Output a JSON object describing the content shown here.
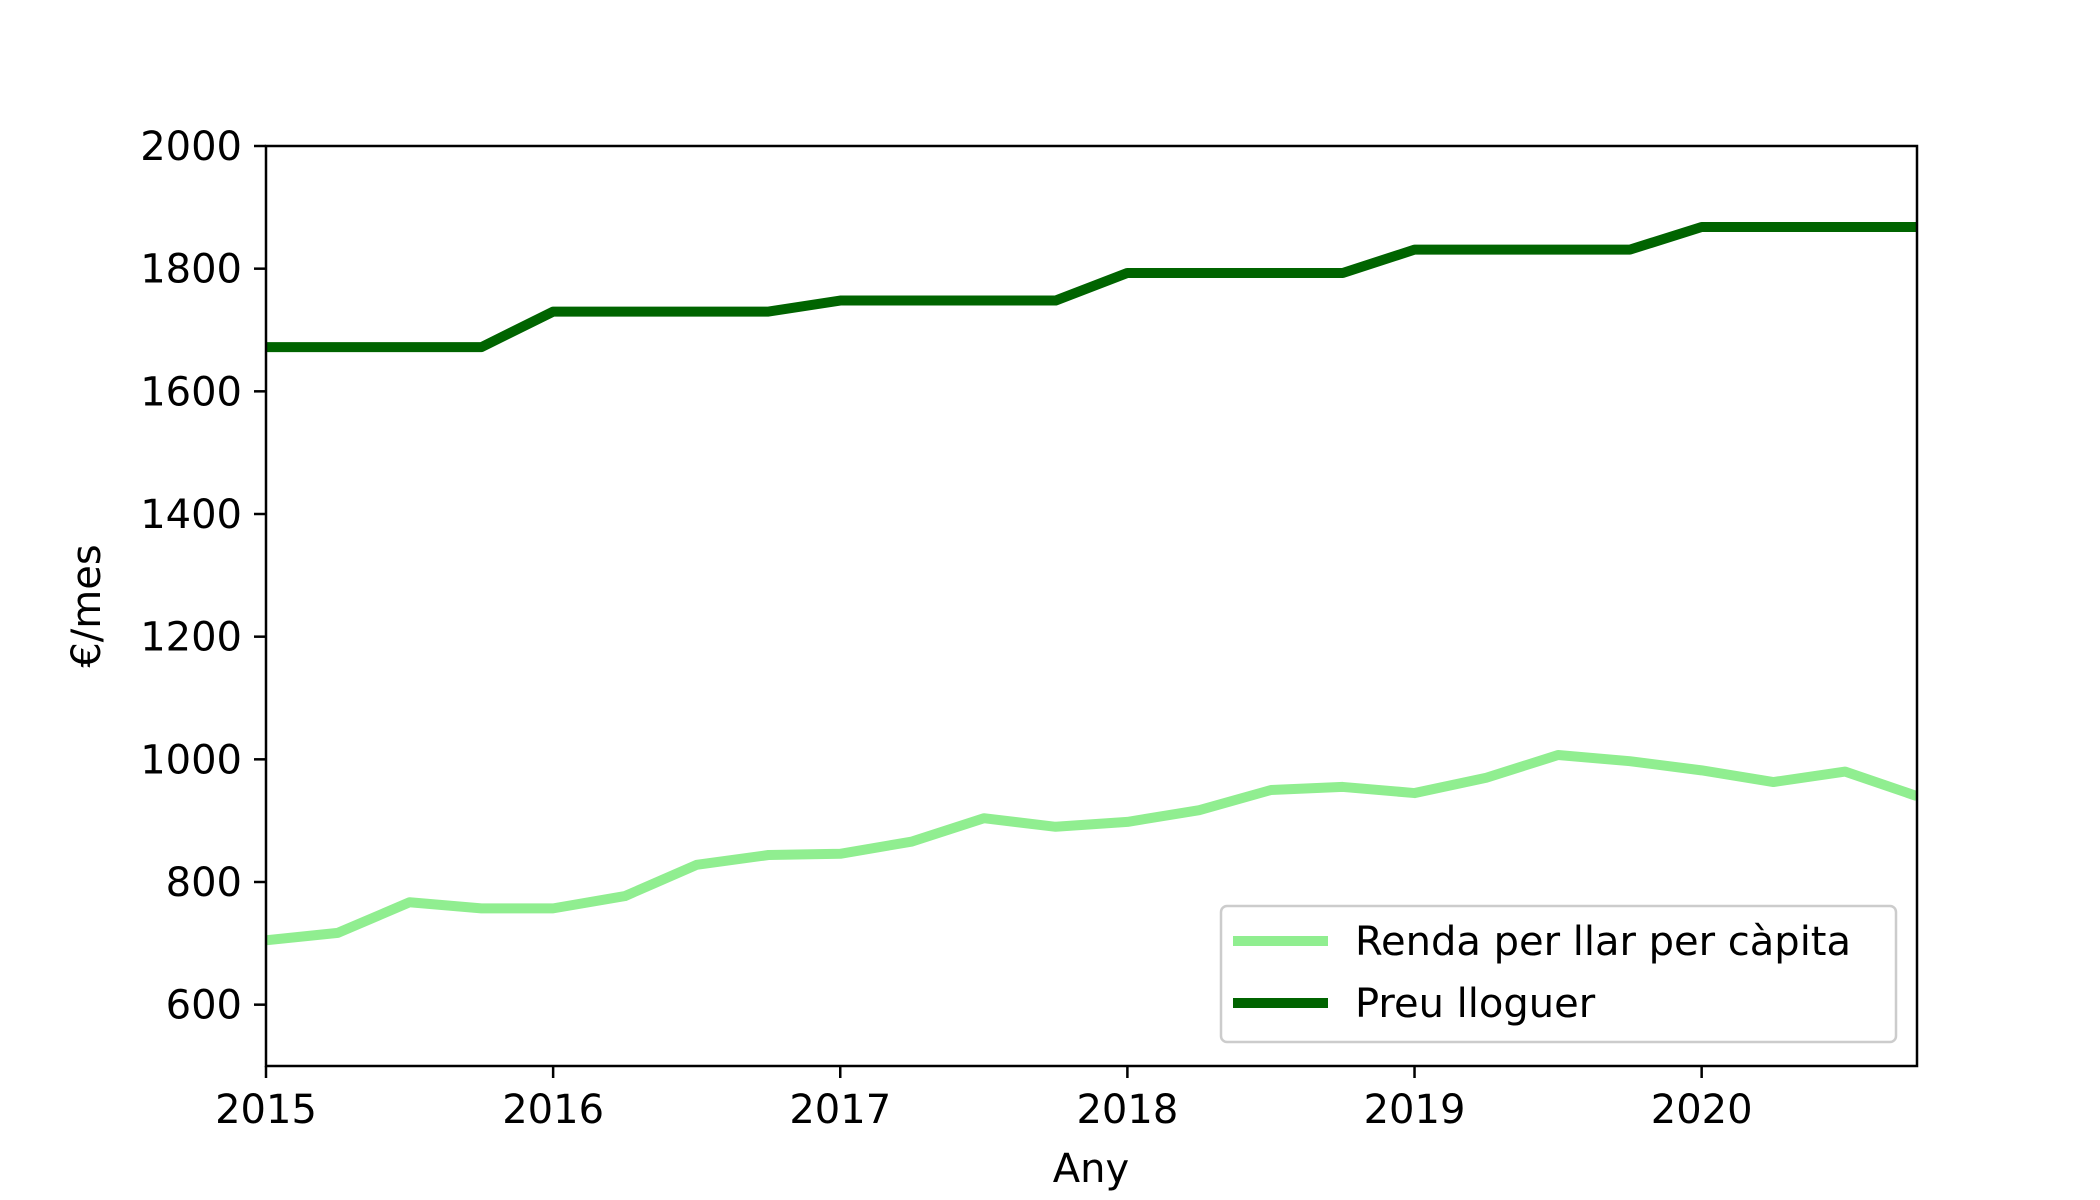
{
  "chart_data": {
    "type": "line",
    "title": "",
    "xlabel": "Any",
    "ylabel": "€/mes",
    "xlim": [
      2015,
      2020.75
    ],
    "ylim": [
      500,
      2000
    ],
    "grid": false,
    "legend_position": "lower-right",
    "x": [
      2015.0,
      2015.25,
      2015.5,
      2015.75,
      2016.0,
      2016.25,
      2016.5,
      2016.75,
      2017.0,
      2017.25,
      2017.5,
      2017.75,
      2018.0,
      2018.25,
      2018.5,
      2018.75,
      2019.0,
      2019.25,
      2019.5,
      2019.75,
      2020.0,
      2020.25,
      2020.5,
      2020.75
    ],
    "x_ticks": [
      {
        "value": 2015,
        "label": "2015"
      },
      {
        "value": 2016,
        "label": "2016"
      },
      {
        "value": 2017,
        "label": "2017"
      },
      {
        "value": 2018,
        "label": "2018"
      },
      {
        "value": 2019,
        "label": "2019"
      },
      {
        "value": 2020,
        "label": "2020"
      }
    ],
    "y_ticks": [
      {
        "value": 600,
        "label": "600"
      },
      {
        "value": 800,
        "label": "800"
      },
      {
        "value": 1000,
        "label": "1000"
      },
      {
        "value": 1200,
        "label": "1200"
      },
      {
        "value": 1400,
        "label": "1400"
      },
      {
        "value": 1600,
        "label": "1600"
      },
      {
        "value": 1800,
        "label": "1800"
      },
      {
        "value": 2000,
        "label": "2000"
      }
    ],
    "series": [
      {
        "name": "Renda per llar per càpita",
        "color": "#90ee90",
        "values": [
          705,
          717,
          767,
          757,
          757,
          777,
          828,
          844,
          846,
          866,
          904,
          890,
          898,
          917,
          950,
          955,
          945,
          970,
          1007,
          997,
          982,
          963,
          980,
          940
        ]
      },
      {
        "name": "Preu lloguer",
        "color": "#006400",
        "values": [
          1672,
          1672,
          1672,
          1672,
          1730,
          1730,
          1730,
          1730,
          1748,
          1748,
          1748,
          1748,
          1793,
          1793,
          1793,
          1793,
          1831,
          1831,
          1831,
          1831,
          1868,
          1868,
          1868,
          1868
        ]
      }
    ]
  }
}
